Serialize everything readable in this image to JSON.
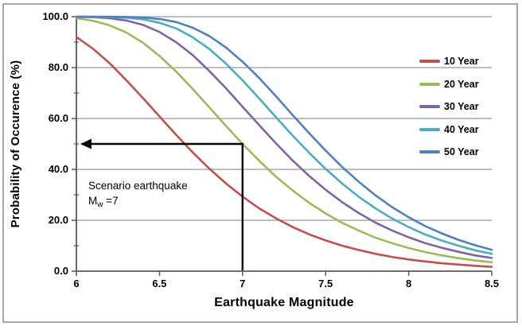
{
  "figure": {
    "background_color": "#ffffff",
    "border_color": "#a8a8a8",
    "gridline_color": "#999999",
    "axis_color": "#595959",
    "annotation_color": "#000000"
  },
  "chart_data": {
    "type": "line",
    "title": "",
    "xlabel": "Earthquake Magnitude",
    "ylabel": "Probability of Occurence (%)",
    "xlim": [
      6,
      8.5
    ],
    "ylim": [
      0,
      100
    ],
    "x_tick_labels": [
      "6",
      "6.5",
      "7",
      "7.5",
      "8",
      "8.5"
    ],
    "x_tick_values": [
      6,
      6.5,
      7,
      7.5,
      8,
      8.5
    ],
    "y_tick_labels": [
      "100.0",
      "80.0",
      "60.0",
      "40.0",
      "20.0",
      "0.0"
    ],
    "y_tick_values": [
      100,
      80,
      60,
      40,
      20,
      0
    ],
    "y_minor_tick_values": [
      10,
      30,
      50,
      70,
      90
    ],
    "grid": "horizontal",
    "legend_position": "inside-right",
    "x": [
      6.0,
      6.1,
      6.2,
      6.3,
      6.4,
      6.5,
      6.6,
      6.7,
      6.8,
      6.9,
      7.0,
      7.1,
      7.2,
      7.3,
      7.4,
      7.5,
      7.6,
      7.7,
      7.8,
      7.9,
      8.0,
      8.1,
      8.2,
      8.3,
      8.4,
      8.5
    ],
    "series": [
      {
        "name": "10 Year",
        "color": "#C0504D",
        "values": [
          92.0,
          87.4,
          81.7,
          75.1,
          68.1,
          60.8,
          53.6,
          46.7,
          40.3,
          34.5,
          29.3,
          24.7,
          20.8,
          17.4,
          14.5,
          12.1,
          10.0,
          8.3,
          6.8,
          5.6,
          4.6,
          3.8,
          3.1,
          2.6,
          2.1,
          1.7
        ]
      },
      {
        "name": "20 Year",
        "color": "#9BBB59",
        "values": [
          99.4,
          98.4,
          96.6,
          93.8,
          89.8,
          84.6,
          78.5,
          71.6,
          64.4,
          57.1,
          50.0,
          43.4,
          37.2,
          31.8,
          26.9,
          22.7,
          19.0,
          15.9,
          13.2,
          11.0,
          9.1,
          7.5,
          6.2,
          5.1,
          4.2,
          3.5
        ]
      },
      {
        "name": "30 Year",
        "color": "#8064A2",
        "values": [
          99.9,
          99.8,
          99.4,
          98.5,
          96.8,
          94.0,
          90.0,
          84.9,
          78.7,
          71.9,
          64.6,
          57.4,
          50.3,
          43.6,
          37.5,
          32.0,
          27.1,
          22.8,
          19.1,
          16.0,
          13.3,
          11.0,
          9.2,
          7.6,
          6.2,
          5.2
        ]
      },
      {
        "name": "40 Year",
        "color": "#4BACC6",
        "values": [
          100.0,
          100.0,
          99.9,
          99.6,
          99.0,
          97.6,
          95.4,
          91.9,
          87.3,
          81.6,
          75.0,
          67.9,
          60.6,
          53.4,
          46.6,
          40.2,
          34.4,
          29.2,
          24.7,
          20.7,
          17.3,
          14.4,
          12.0,
          10.0,
          8.2,
          6.8
        ]
      },
      {
        "name": "50 Year",
        "color": "#4F81BD",
        "values": [
          100.0,
          100.0,
          100.0,
          99.9,
          99.7,
          99.1,
          97.9,
          95.7,
          92.4,
          87.9,
          82.3,
          75.9,
          68.8,
          61.5,
          54.3,
          47.4,
          40.9,
          35.1,
          29.8,
          25.2,
          21.2,
          17.7,
          14.8,
          12.3,
          10.2,
          8.4
        ]
      }
    ],
    "annotation": {
      "line1": "Scenario earthquake",
      "line2_main": "M",
      "line2_sub": "w",
      "line2_rest": " =7",
      "scenario_magnitude": 7,
      "scenario_probability_percent": 50
    }
  }
}
